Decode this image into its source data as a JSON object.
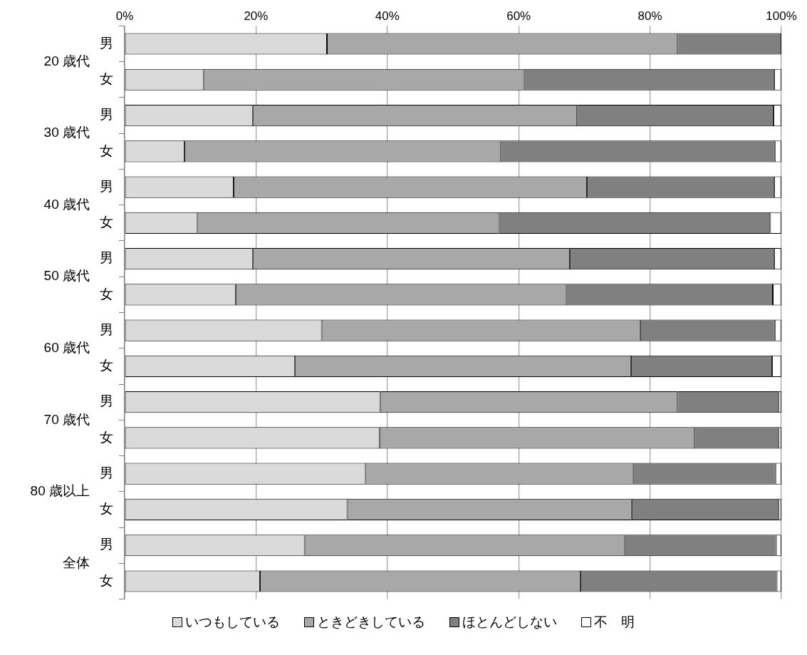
{
  "chart_data": {
    "type": "bar",
    "orientation": "horizontal",
    "stacked": true,
    "categories": [
      "男",
      "女",
      "男",
      "女",
      "男",
      "女",
      "男",
      "女",
      "男",
      "女",
      "男",
      "女",
      "男",
      "女",
      "男",
      "女"
    ],
    "annotations": [
      "20 歳代",
      "30 歳代",
      "40 歳代",
      "50 歳代",
      "60 歳代",
      "70 歳代",
      "80 歳以上",
      "全体"
    ],
    "series": [
      {
        "name": "いつもしている",
        "color": "#dadada",
        "values": [
          30.8,
          12.0,
          19.5,
          9.1,
          16.6,
          11.1,
          19.5,
          16.9,
          30.0,
          25.9,
          38.9,
          38.8,
          36.7,
          33.9,
          27.4,
          20.6
        ]
      },
      {
        "name": "ときどきしている",
        "color": "#a8a8a8",
        "values": [
          53.4,
          48.8,
          49.4,
          48.2,
          53.8,
          45.9,
          48.3,
          50.3,
          48.5,
          51.2,
          45.3,
          48.0,
          40.7,
          43.3,
          48.7,
          48.8
        ]
      },
      {
        "name": "ほとんどしない",
        "color": "#808080",
        "values": [
          15.8,
          38.1,
          29.9,
          41.7,
          28.5,
          41.3,
          31.1,
          31.5,
          20.5,
          21.5,
          15.4,
          12.8,
          21.7,
          22.4,
          23.1,
          29.9
        ]
      },
      {
        "name": "不　明",
        "color": "#ffffff",
        "values": [
          0,
          1.1,
          1.2,
          1.0,
          1.1,
          1.7,
          1.1,
          1.3,
          1.0,
          1.4,
          0.4,
          0.4,
          0.9,
          0.4,
          0.8,
          0.7
        ]
      }
    ],
    "xlim": [
      0,
      100
    ],
    "xticks": [
      {
        "value": 0,
        "label": "0%"
      },
      {
        "value": 20,
        "label": "20%"
      },
      {
        "value": 40,
        "label": "40%"
      },
      {
        "value": 60,
        "label": "60%"
      },
      {
        "value": 80,
        "label": "80%"
      },
      {
        "value": 100,
        "label": "100%"
      }
    ],
    "grid": "x",
    "legend": "bottom"
  }
}
